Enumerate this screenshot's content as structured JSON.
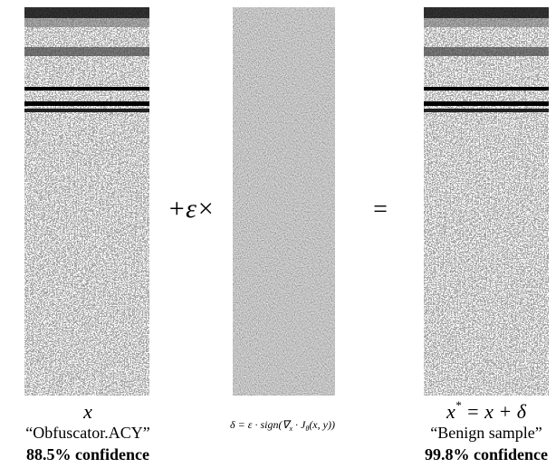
{
  "left": {
    "symbol": "x",
    "label": "“Obfuscator.ACY”",
    "confidence": "88.5% confidence"
  },
  "operator_1": "+ε×",
  "middle": {
    "formula": [
      "δ = ε · sign(∇",
      "x",
      " · J",
      "θ",
      "(x, y))"
    ]
  },
  "operator_2": "=",
  "right": {
    "symbol": [
      "x",
      "*",
      " = x + δ"
    ],
    "label": "“Benign sample”",
    "confidence": "99.8% confidence"
  }
}
